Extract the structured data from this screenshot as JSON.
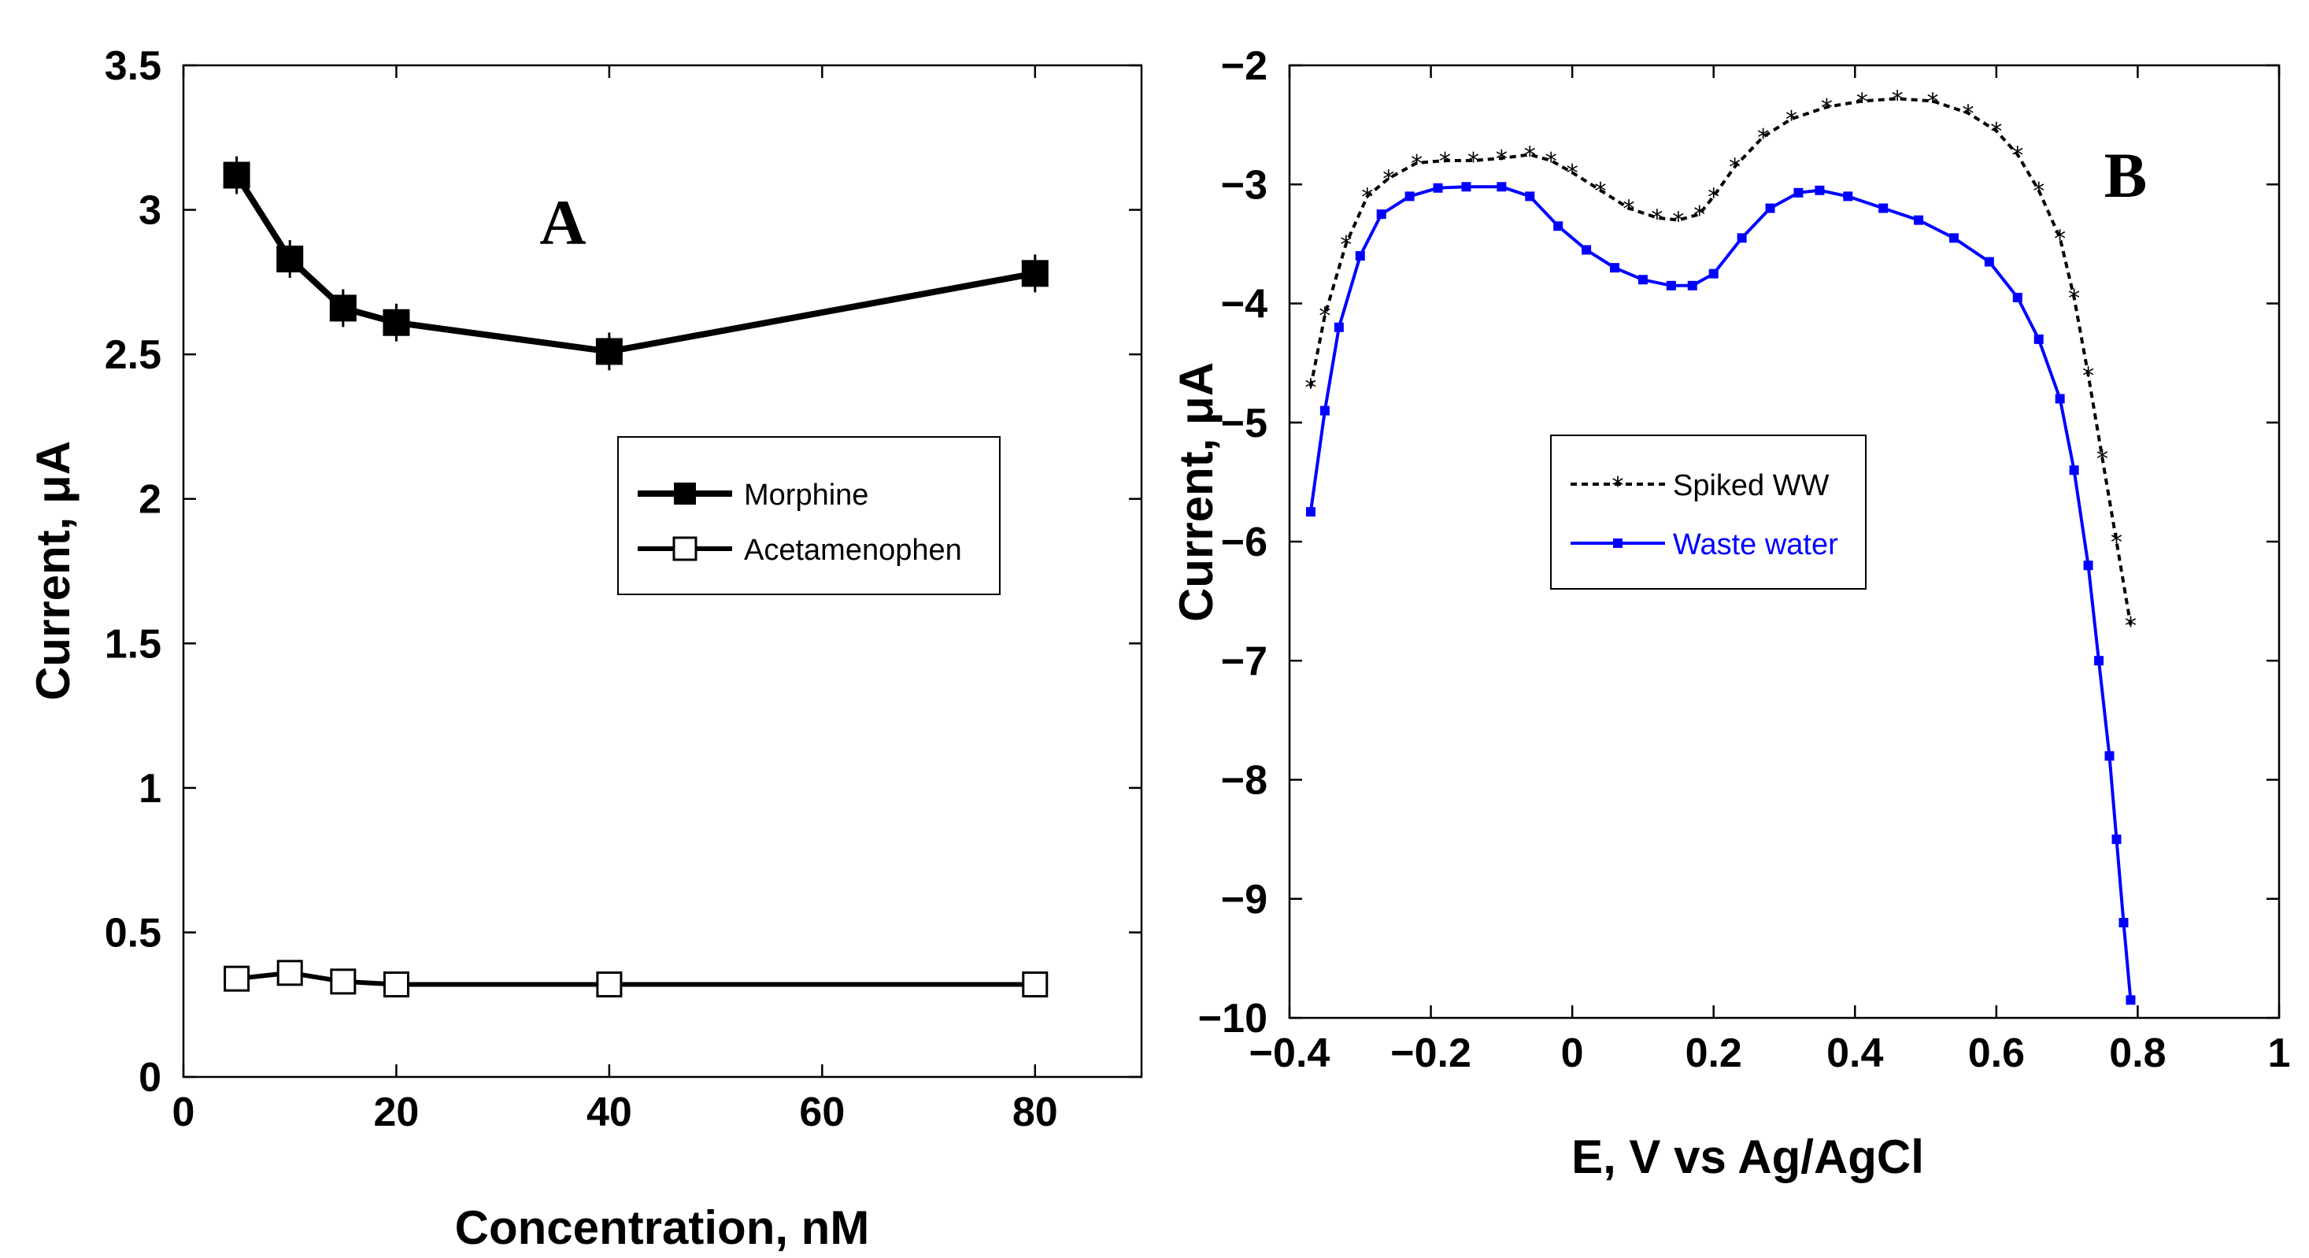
{
  "chart_data": [
    {
      "type": "line",
      "panel_label": "A",
      "title": "",
      "xlabel": "Concentration, nM",
      "ylabel": "Current, μA",
      "xlim": [
        0,
        90
      ],
      "ylim": [
        0,
        3.5
      ],
      "xticks": [
        0,
        20,
        40,
        60,
        80
      ],
      "xtick_labels": [
        "0",
        "20",
        "40",
        "60",
        "80"
      ],
      "yticks": [
        0,
        0.5,
        1,
        1.5,
        2,
        2.5,
        3,
        3.5
      ],
      "ytick_labels": [
        "0",
        "0.5",
        "1",
        "1.5",
        "2",
        "2.5",
        "3",
        "3.5"
      ],
      "legend_position": "center-right",
      "series": [
        {
          "name": "Morphine",
          "marker": "filled-square",
          "color": "#000000",
          "x": [
            5,
            10,
            15,
            20,
            40,
            80
          ],
          "y": [
            3.12,
            2.83,
            2.66,
            2.61,
            2.51,
            2.78
          ]
        },
        {
          "name": "Acetamenophen",
          "marker": "open-square",
          "color": "#000000",
          "x": [
            5,
            10,
            15,
            20,
            40,
            80
          ],
          "y": [
            0.34,
            0.36,
            0.33,
            0.32,
            0.32,
            0.32
          ]
        }
      ]
    },
    {
      "type": "line",
      "panel_label": "B",
      "title": "",
      "xlabel": "E, V vs Ag/AgCl",
      "ylabel": "Current, μA",
      "xlim": [
        -0.4,
        1
      ],
      "ylim": [
        -10,
        -2
      ],
      "xticks": [
        -0.4,
        -0.2,
        0,
        0.2,
        0.4,
        0.6,
        0.8,
        1
      ],
      "xtick_labels": [
        "−0.4",
        "−0.2",
        "0",
        "0.2",
        "0.4",
        "0.6",
        "0.8",
        "1"
      ],
      "yticks": [
        -2,
        -3,
        -4,
        -5,
        -6,
        -7,
        -8,
        -9,
        -10
      ],
      "ytick_labels": [
        "−2",
        "−3",
        "−4",
        "−5",
        "−6",
        "−7",
        "−8",
        "−9",
        "−10"
      ],
      "legend_position": "center-left",
      "series": [
        {
          "name": "Spiked WW",
          "style": "dashed-star",
          "color": "#000000",
          "x": [
            -0.37,
            -0.35,
            -0.32,
            -0.29,
            -0.26,
            -0.22,
            -0.18,
            -0.14,
            -0.1,
            -0.06,
            -0.03,
            0.0,
            0.04,
            0.08,
            0.12,
            0.15,
            0.18,
            0.2,
            0.23,
            0.27,
            0.31,
            0.36,
            0.41,
            0.46,
            0.51,
            0.56,
            0.6,
            0.63,
            0.66,
            0.69,
            0.71,
            0.73,
            0.75,
            0.77,
            0.79
          ],
          "y": [
            -4.7,
            -4.1,
            -3.5,
            -3.1,
            -2.95,
            -2.82,
            -2.8,
            -2.8,
            -2.78,
            -2.75,
            -2.8,
            -2.9,
            -3.05,
            -3.2,
            -3.28,
            -3.3,
            -3.25,
            -3.1,
            -2.85,
            -2.6,
            -2.45,
            -2.35,
            -2.3,
            -2.28,
            -2.3,
            -2.4,
            -2.55,
            -2.75,
            -3.05,
            -3.45,
            -3.95,
            -4.6,
            -5.3,
            -6.0,
            -6.7
          ]
        },
        {
          "name": "Waste water",
          "style": "solid-square",
          "color": "#0000ff",
          "x": [
            -0.37,
            -0.35,
            -0.33,
            -0.3,
            -0.27,
            -0.23,
            -0.19,
            -0.15,
            -0.1,
            -0.06,
            -0.02,
            0.02,
            0.06,
            0.1,
            0.14,
            0.17,
            0.2,
            0.24,
            0.28,
            0.32,
            0.35,
            0.39,
            0.44,
            0.49,
            0.54,
            0.59,
            0.63,
            0.66,
            0.69,
            0.71,
            0.73,
            0.745,
            0.76,
            0.77,
            0.78,
            0.79
          ],
          "y": [
            -5.75,
            -4.9,
            -4.2,
            -3.6,
            -3.25,
            -3.1,
            -3.03,
            -3.02,
            -3.02,
            -3.1,
            -3.35,
            -3.55,
            -3.7,
            -3.8,
            -3.85,
            -3.85,
            -3.75,
            -3.45,
            -3.2,
            -3.07,
            -3.05,
            -3.1,
            -3.2,
            -3.3,
            -3.45,
            -3.65,
            -3.95,
            -4.3,
            -4.8,
            -5.4,
            -6.2,
            -7.0,
            -7.8,
            -8.5,
            -9.2,
            -9.85
          ]
        }
      ]
    }
  ]
}
